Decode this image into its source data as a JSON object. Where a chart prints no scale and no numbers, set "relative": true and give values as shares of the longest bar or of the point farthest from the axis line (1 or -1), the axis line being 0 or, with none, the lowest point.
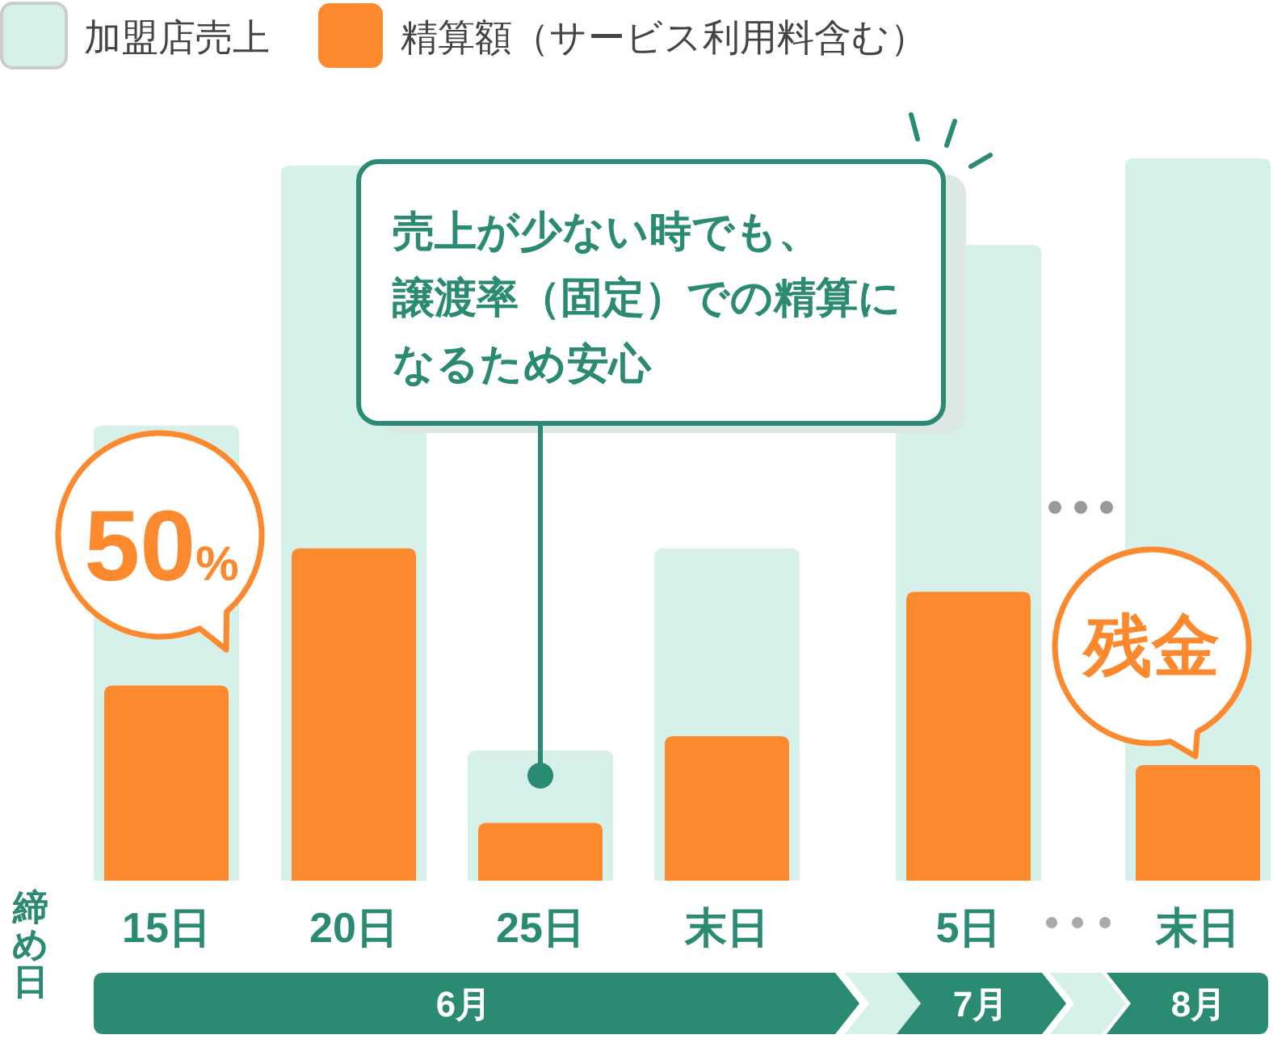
{
  "chart_data": {
    "type": "bar",
    "relative": true,
    "legend": "top left",
    "categories": [
      "15日",
      "20日",
      "25日",
      "末日",
      "5日",
      "末日"
    ],
    "series": [
      {
        "name": "加盟店売上",
        "color": "#d6f0ea",
        "values": [
          0.63,
          0.99,
          0.18,
          0.46,
          0.88,
          1
        ]
      },
      {
        "name": "精算額（サービス利用料含む）",
        "color": "#fd892f",
        "values": [
          0.27,
          0.46,
          0.08,
          0.2,
          0.4,
          0.16
        ]
      }
    ],
    "annotations": [
      "売上が少ない時でも、譲渡率（固定）での精算になるため安心",
      "50%",
      "残金",
      "締め日",
      "6月",
      "7月",
      "8月"
    ]
  }
}
